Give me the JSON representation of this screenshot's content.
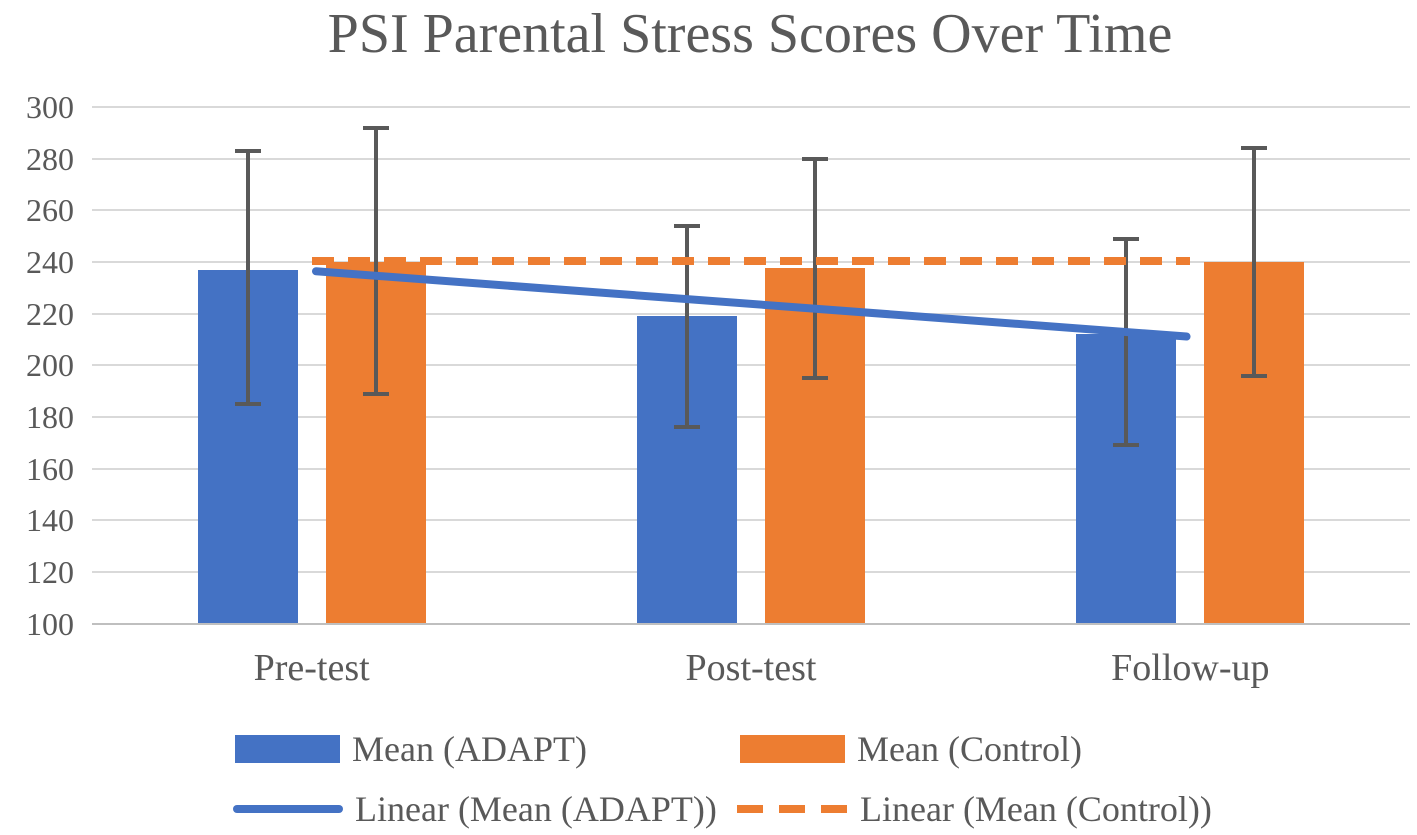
{
  "title": "PSI Parental Stress Scores Over Time",
  "colors": {
    "adapt_blue": "#4472C4",
    "control_orange": "#ED7D31",
    "gridline": "#D9D9D9",
    "axis_line": "#BFBFBF",
    "error_bar": "#595959",
    "text": "#595959"
  },
  "chart_data": {
    "type": "bar",
    "title": "PSI Parental Stress Scores Over Time",
    "xlabel": "",
    "ylabel": "",
    "categories": [
      "Pre-test",
      "Post-test",
      "Follow-up"
    ],
    "series": [
      {
        "name": "Mean (ADAPT)",
        "color": "#4472C4",
        "values": [
          237,
          219,
          212
        ],
        "error_upper": [
          283,
          254,
          249
        ],
        "error_lower": [
          185,
          176,
          169
        ]
      },
      {
        "name": "Mean (Control)",
        "color": "#ED7D31",
        "values": [
          240,
          237.5,
          240
        ],
        "error_upper": [
          292,
          280,
          284
        ],
        "error_lower": [
          189,
          195,
          196
        ]
      }
    ],
    "trendlines": [
      {
        "name": "Linear (Mean (ADAPT))",
        "color": "#4472C4",
        "style": "solid",
        "values": [
          236.5,
          223.75,
          211
        ]
      },
      {
        "name": "Linear (Mean (Control))",
        "color": "#ED7D31",
        "style": "dashed",
        "values": [
          240.3,
          240.3,
          240.3
        ]
      }
    ],
    "y_axis": {
      "min": 100,
      "max": 300,
      "tick_step": 20,
      "ticks": [
        300,
        280,
        260,
        240,
        220,
        200,
        180,
        160,
        140,
        120,
        100
      ]
    },
    "ylim": [
      100,
      300
    ],
    "grid": true,
    "legend_position": "bottom"
  }
}
